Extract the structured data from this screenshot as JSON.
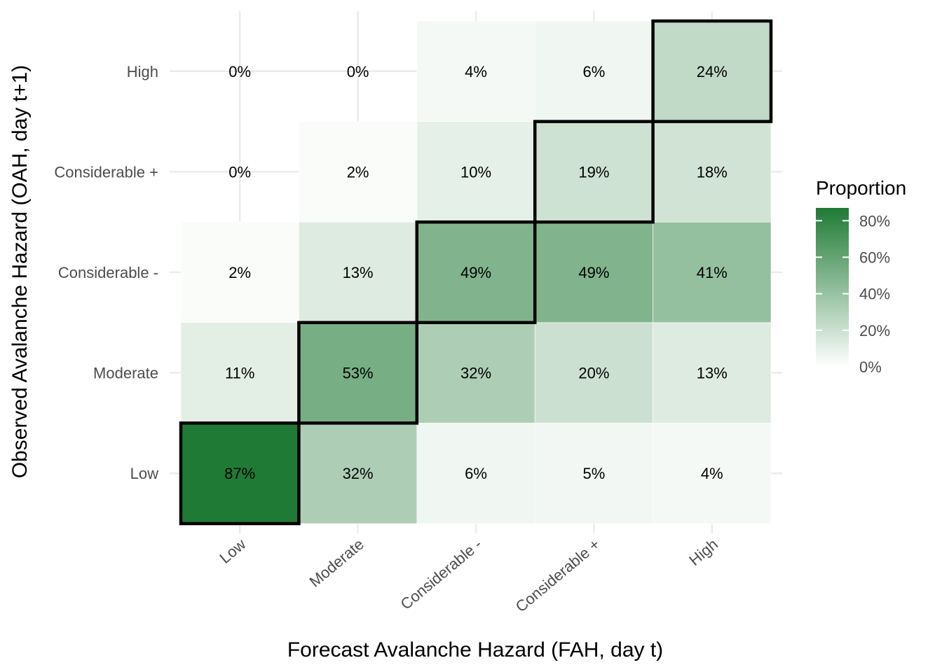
{
  "chart_data": {
    "type": "heatmap",
    "xlabel": "Forecast Avalanche Hazard (FAH, day t)",
    "ylabel": "Observed Avalanche Hazard (OAH, day t+1)",
    "x_categories": [
      "Low",
      "Moderate",
      "Considerable -",
      "Considerable +",
      "High"
    ],
    "y_categories": [
      "Low",
      "Moderate",
      "Considerable -",
      "Considerable +",
      "High"
    ],
    "values": [
      [
        87,
        32,
        6,
        5,
        4
      ],
      [
        11,
        53,
        32,
        20,
        13
      ],
      [
        2,
        13,
        49,
        49,
        41
      ],
      [
        0,
        2,
        10,
        19,
        18
      ],
      [
        0,
        0,
        4,
        6,
        24
      ]
    ],
    "cell_labels": [
      [
        "87%",
        "32%",
        "6%",
        "5%",
        "4%"
      ],
      [
        "11%",
        "53%",
        "32%",
        "20%",
        "13%"
      ],
      [
        "2%",
        "13%",
        "49%",
        "49%",
        "41%"
      ],
      [
        "0%",
        "2%",
        "10%",
        "19%",
        "18%"
      ],
      [
        "0%",
        "0%",
        "4%",
        "6%",
        "24%"
      ]
    ],
    "highlighted_cells": [
      [
        0,
        0
      ],
      [
        1,
        1
      ],
      [
        2,
        2
      ],
      [
        3,
        3
      ],
      [
        4,
        4
      ]
    ],
    "legend": {
      "title": "Proportion",
      "ticks": [
        "0%",
        "20%",
        "40%",
        "60%",
        "80%"
      ],
      "tick_values": [
        0,
        20,
        40,
        60,
        80
      ],
      "range": [
        0,
        87
      ],
      "position": "right"
    },
    "colors": {
      "low": "#ffffff",
      "high": "#1f7a35"
    },
    "grid": true
  }
}
